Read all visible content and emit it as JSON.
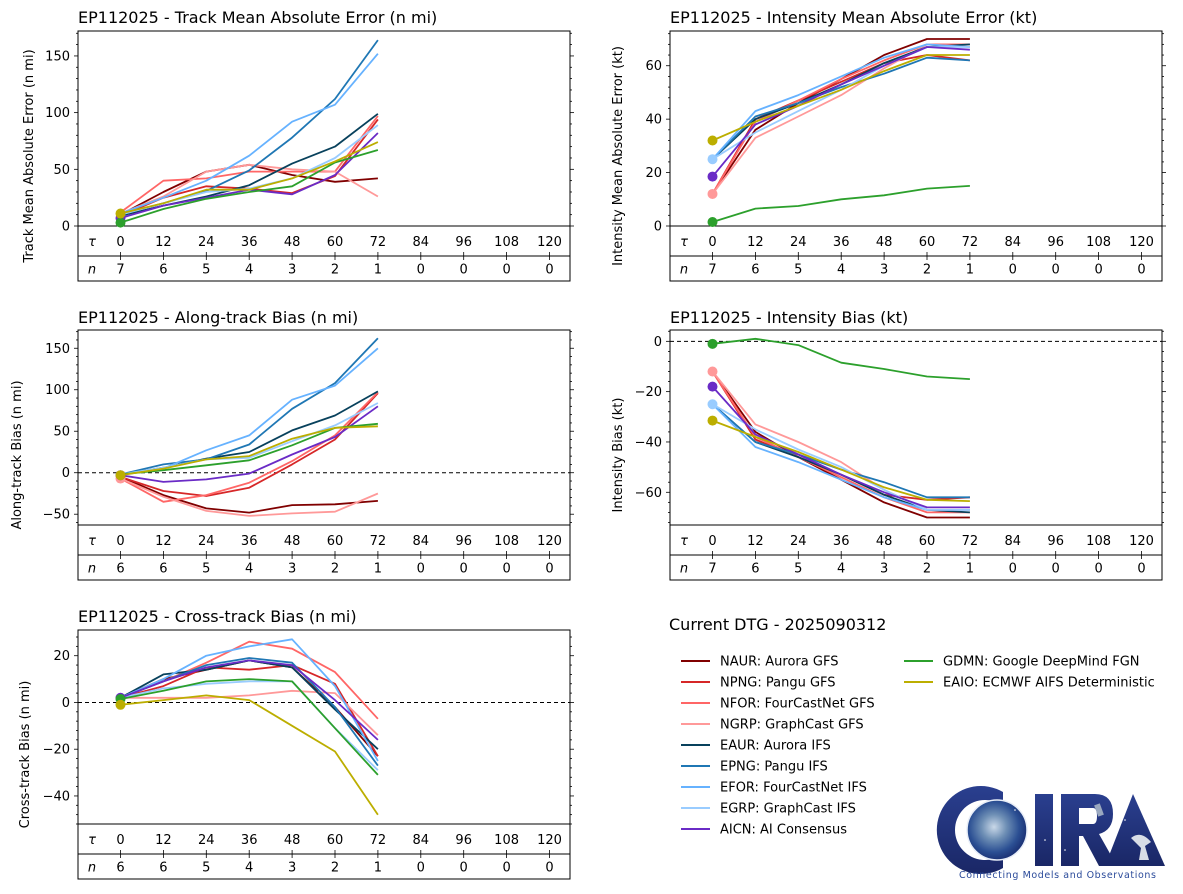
{
  "storm_id": "EP112025",
  "current_dtg_label": "Current DTG - 2025090312",
  "logo": {
    "text": "CIRA",
    "caption": "Connecting Models and Observations"
  },
  "models": [
    {
      "id": "NAUR",
      "label": "NAUR: Aurora GFS",
      "color": "#800000"
    },
    {
      "id": "NPNG",
      "label": "NPNG: Pangu GFS",
      "color": "#d62728"
    },
    {
      "id": "NFOR",
      "label": "NFOR: FourCastNet GFS",
      "color": "#ff6666"
    },
    {
      "id": "NGRP",
      "label": "NGRP: GraphCast GFS",
      "color": "#ff9999"
    },
    {
      "id": "EAUR",
      "label": "EAUR: Aurora IFS",
      "color": "#08415c"
    },
    {
      "id": "EPNG",
      "label": "EPNG: Pangu IFS",
      "color": "#1f77b4"
    },
    {
      "id": "EFOR",
      "label": "EFOR: FourCastNet IFS",
      "color": "#66b2ff"
    },
    {
      "id": "EGRP",
      "label": "EGRP: GraphCast IFS",
      "color": "#99ccff"
    },
    {
      "id": "AICN",
      "label": "AICN: AI Consensus",
      "color": "#6a2bc6"
    },
    {
      "id": "GDMN",
      "label": "GDMN: Google DeepMind FGN",
      "color": "#2ca02c"
    },
    {
      "id": "EAIO",
      "label": "EAIO: ECMWF AIFS Deterministic",
      "color": "#bcae00"
    }
  ],
  "tau_label": "τ",
  "n_label": "n",
  "chart_data": [
    {
      "id": "track-mae",
      "type": "line",
      "title": "EP112025 - Track Mean Absolute Error (n mi)",
      "ylabel": "Track Mean Absolute Error (n mi)",
      "ylim": [
        0,
        172
      ],
      "yticks": [
        0,
        50,
        100,
        150
      ],
      "zero_line": false,
      "tau": [
        0,
        12,
        24,
        36,
        48,
        60,
        72,
        84,
        96,
        108,
        120
      ],
      "n": [
        7,
        6,
        5,
        4,
        3,
        2,
        1,
        0,
        0,
        0,
        0
      ],
      "x": [
        0,
        12,
        24,
        36,
        48,
        60,
        72
      ],
      "series": [
        {
          "model": "NAUR",
          "values": [
            10,
            30,
            48,
            54,
            45,
            39,
            42
          ]
        },
        {
          "model": "NPNG",
          "values": [
            9,
            25,
            35,
            33,
            29,
            44,
            94
          ]
        },
        {
          "model": "NFOR",
          "values": [
            12,
            40,
            42,
            48,
            48,
            48,
            97
          ]
        },
        {
          "model": "NGRP",
          "values": [
            11,
            26,
            48,
            54,
            50,
            48,
            26
          ]
        },
        {
          "model": "EAUR",
          "values": [
            9,
            18,
            26,
            36,
            55,
            70,
            99
          ]
        },
        {
          "model": "EPNG",
          "values": [
            10,
            20,
            31,
            49,
            78,
            112,
            164
          ]
        },
        {
          "model": "EFOR",
          "values": [
            11,
            25,
            40,
            62,
            92,
            107,
            152
          ]
        },
        {
          "model": "EGRP",
          "values": [
            10,
            20,
            30,
            33,
            42,
            60,
            89
          ]
        },
        {
          "model": "AICN",
          "values": [
            7,
            18,
            25,
            32,
            28,
            45,
            82
          ]
        },
        {
          "model": "GDMN",
          "values": [
            3,
            15,
            24,
            30,
            35,
            56,
            67
          ]
        },
        {
          "model": "EAIO",
          "values": [
            11,
            20,
            32,
            32,
            42,
            57,
            74
          ]
        }
      ],
      "markers_at_tau0": [
        "AICN",
        "GDMN",
        "EAIO"
      ]
    },
    {
      "id": "intensity-mae",
      "type": "line",
      "title": "EP112025 - Intensity Mean Absolute Error (kt)",
      "ylabel": "Intensity Mean Absolute Error (kt)",
      "ylim": [
        0,
        73
      ],
      "yticks": [
        0,
        20,
        40,
        60
      ],
      "zero_line": false,
      "tau": [
        0,
        12,
        24,
        36,
        48,
        60,
        72,
        84,
        96,
        108,
        120
      ],
      "n": [
        7,
        6,
        5,
        4,
        3,
        2,
        1,
        0,
        0,
        0,
        0
      ],
      "x": [
        0,
        12,
        24,
        36,
        48,
        60,
        72
      ],
      "series": [
        {
          "model": "NAUR",
          "values": [
            12,
            36,
            46,
            55,
            64,
            70,
            70
          ]
        },
        {
          "model": "NPNG",
          "values": [
            12,
            40,
            47,
            54,
            61,
            64,
            62
          ]
        },
        {
          "model": "NFOR",
          "values": [
            12,
            39,
            47,
            55,
            62,
            68,
            68
          ]
        },
        {
          "model": "NGRP",
          "values": [
            12,
            33,
            41,
            49,
            59,
            68,
            67
          ]
        },
        {
          "model": "EAUR",
          "values": [
            25,
            40,
            46,
            53,
            61,
            67,
            68
          ]
        },
        {
          "model": "EPNG",
          "values": [
            25,
            41,
            46,
            52,
            57,
            63,
            62
          ]
        },
        {
          "model": "EFOR",
          "values": [
            25,
            43,
            49,
            56,
            63,
            68,
            67
          ]
        },
        {
          "model": "EGRP",
          "values": [
            25,
            35,
            43,
            51,
            60,
            67,
            67
          ]
        },
        {
          "model": "AICN",
          "values": [
            18.5,
            38,
            45,
            53,
            60,
            67,
            66
          ]
        },
        {
          "model": "GDMN",
          "values": [
            1.5,
            6.5,
            7.5,
            10,
            11.5,
            14,
            15
          ]
        },
        {
          "model": "EAIO",
          "values": [
            32,
            39,
            45,
            51,
            58,
            64,
            64
          ]
        }
      ],
      "markers_at_tau0": [
        "NGRP",
        "EGRP",
        "AICN",
        "GDMN",
        "EAIO"
      ]
    },
    {
      "id": "along-track-bias",
      "type": "line",
      "title": "EP112025 - Along-track Bias (n mi)",
      "ylabel": "Along-track Bias (n mi)",
      "ylim": [
        -63,
        172
      ],
      "yticks": [
        -50,
        0,
        50,
        100,
        150
      ],
      "zero_line": true,
      "tau": [
        0,
        12,
        24,
        36,
        48,
        60,
        72,
        84,
        96,
        108,
        120
      ],
      "n": [
        6,
        6,
        5,
        4,
        3,
        2,
        1,
        0,
        0,
        0,
        0
      ],
      "x": [
        0,
        12,
        24,
        36,
        48,
        60,
        72
      ],
      "series": [
        {
          "model": "NAUR",
          "values": [
            -5,
            -27,
            -43,
            -48,
            -39,
            -38,
            -34
          ]
        },
        {
          "model": "NPNG",
          "values": [
            -5,
            -22,
            -28,
            -18,
            10,
            40,
            96
          ]
        },
        {
          "model": "NFOR",
          "values": [
            -7,
            -35,
            -27,
            -12,
            14,
            45,
            97
          ]
        },
        {
          "model": "NGRP",
          "values": [
            -7,
            -29,
            -46,
            -52,
            -49,
            -47,
            -25
          ]
        },
        {
          "model": "EAUR",
          "values": [
            -2,
            6,
            17,
            25,
            51,
            69,
            98
          ]
        },
        {
          "model": "EPNG",
          "values": [
            -2,
            10,
            16,
            34,
            77,
            108,
            162
          ]
        },
        {
          "model": "EFOR",
          "values": [
            -2,
            5,
            27,
            45,
            88,
            105,
            150
          ]
        },
        {
          "model": "EGRP",
          "values": [
            -2,
            6,
            16,
            18,
            38,
            57,
            84
          ]
        },
        {
          "model": "AICN",
          "values": [
            -3,
            -11,
            -8,
            -1,
            22,
            43,
            80
          ]
        },
        {
          "model": "GDMN",
          "values": [
            -2,
            3,
            9,
            15,
            33,
            54,
            59
          ]
        },
        {
          "model": "EAIO",
          "values": [
            -3,
            5,
            16,
            20,
            41,
            54,
            56
          ]
        }
      ],
      "markers_at_tau0": [
        "NGRP",
        "AICN",
        "EAIO"
      ]
    },
    {
      "id": "intensity-bias",
      "type": "line",
      "title": "EP112025 - Intensity Bias (kt)",
      "ylabel": "Intensity Bias (kt)",
      "ylim": [
        -73,
        4.5
      ],
      "yticks": [
        -60,
        -40,
        -20,
        0
      ],
      "zero_line": true,
      "tau": [
        0,
        12,
        24,
        36,
        48,
        60,
        72,
        84,
        96,
        108,
        120
      ],
      "n": [
        7,
        6,
        5,
        4,
        3,
        2,
        1,
        0,
        0,
        0,
        0
      ],
      "x": [
        0,
        12,
        24,
        36,
        48,
        60,
        72
      ],
      "series": [
        {
          "model": "NAUR",
          "values": [
            -12,
            -36,
            -46,
            -55,
            -64,
            -70,
            -70
          ]
        },
        {
          "model": "NPNG",
          "values": [
            -12,
            -39,
            -46,
            -53,
            -61,
            -63,
            -62
          ]
        },
        {
          "model": "NFOR",
          "values": [
            -12,
            -38,
            -46,
            -54,
            -62,
            -68,
            -68
          ]
        },
        {
          "model": "NGRP",
          "values": [
            -12,
            -33,
            -40,
            -48,
            -59,
            -67,
            -67
          ]
        },
        {
          "model": "EAUR",
          "values": [
            -25,
            -40,
            -46,
            -53,
            -61,
            -67,
            -68
          ]
        },
        {
          "model": "EPNG",
          "values": [
            -25,
            -40,
            -45,
            -51,
            -56,
            -62,
            -62
          ]
        },
        {
          "model": "EFOR",
          "values": [
            -25,
            -42,
            -48,
            -55,
            -62,
            -67,
            -67
          ]
        },
        {
          "model": "EGRP",
          "values": [
            -25,
            -35,
            -43,
            -50,
            -59,
            -67,
            -67
          ]
        },
        {
          "model": "AICN",
          "values": [
            -18,
            -37,
            -45,
            -53,
            -60,
            -66,
            -66
          ]
        },
        {
          "model": "GDMN",
          "values": [
            -1,
            1,
            -1.5,
            -8.5,
            -11,
            -14,
            -15
          ]
        },
        {
          "model": "EAIO",
          "values": [
            -31.5,
            -38,
            -44,
            -51,
            -58,
            -63,
            -63.5
          ]
        }
      ],
      "markers_at_tau0": [
        "NGRP",
        "EGRP",
        "AICN",
        "GDMN",
        "EAIO"
      ]
    },
    {
      "id": "cross-track-bias",
      "type": "line",
      "title": "EP112025 - Cross-track Bias (n mi)",
      "ylabel": "Cross-track Bias (n mi)",
      "ylim": [
        -52,
        31
      ],
      "yticks": [
        -40,
        -20,
        0,
        20
      ],
      "zero_line": true,
      "tau": [
        0,
        12,
        24,
        36,
        48,
        60,
        72,
        84,
        96,
        108,
        120
      ],
      "n": [
        6,
        6,
        5,
        4,
        3,
        2,
        1,
        0,
        0,
        0,
        0
      ],
      "x": [
        0,
        12,
        24,
        36,
        48,
        60,
        72
      ],
      "series": [
        {
          "model": "NAUR",
          "values": [
            2,
            10,
            14,
            18,
            15,
            -2,
            -23
          ]
        },
        {
          "model": "NPNG",
          "values": [
            2,
            7,
            15,
            14,
            16,
            8,
            -23
          ]
        },
        {
          "model": "NFOR",
          "values": [
            2,
            9,
            17,
            26,
            23,
            13,
            -7
          ]
        },
        {
          "model": "NGRP",
          "values": [
            2,
            2,
            2,
            3,
            5,
            4,
            -14
          ]
        },
        {
          "model": "EAUR",
          "values": [
            2,
            12,
            14,
            18,
            15,
            -3,
            -20
          ]
        },
        {
          "model": "EPNG",
          "values": [
            2,
            9,
            16,
            19,
            17,
            -2,
            -27
          ]
        },
        {
          "model": "EFOR",
          "values": [
            2,
            10,
            20,
            24,
            27,
            7,
            -25
          ]
        },
        {
          "model": "EGRP",
          "values": [
            2,
            6,
            8,
            9,
            9,
            -11,
            -29
          ]
        },
        {
          "model": "AICN",
          "values": [
            2,
            9,
            15,
            18,
            16,
            1,
            -16
          ]
        },
        {
          "model": "GDMN",
          "values": [
            1.5,
            5,
            9,
            10,
            9,
            -11,
            -31
          ]
        },
        {
          "model": "EAIO",
          "values": [
            -1,
            1,
            3,
            1,
            -10,
            -21,
            -48
          ]
        }
      ],
      "markers_at_tau0": [
        "AICN",
        "GDMN",
        "EAIO"
      ]
    }
  ]
}
